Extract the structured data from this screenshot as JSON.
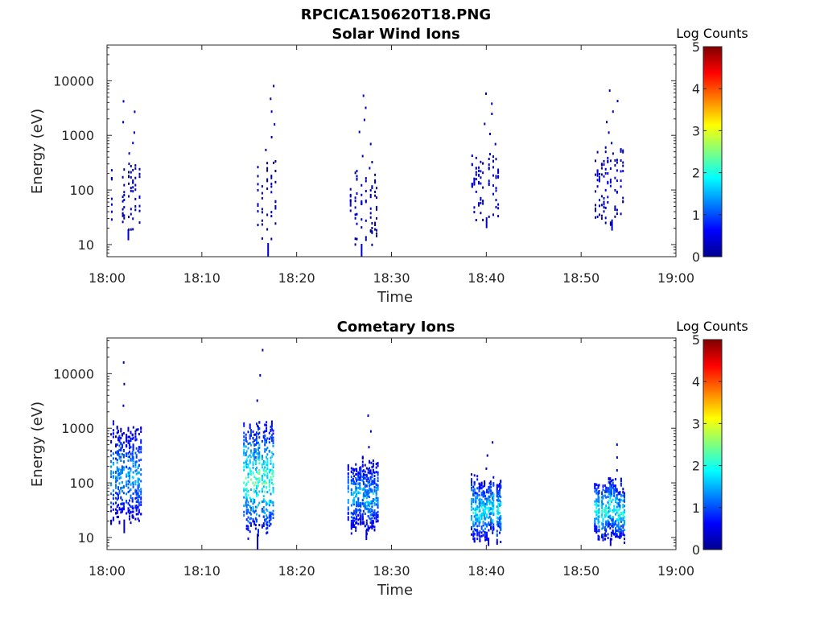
{
  "figure_title": "RPCICA150620T18.PNG",
  "chart_data": [
    {
      "type": "heatmap",
      "title": "Solar Wind Ions",
      "xlabel": "Time",
      "ylabel": "Energy (eV)",
      "xlim": [
        "18:00",
        "19:00"
      ],
      "x_ticks": [
        "18:00",
        "18:10",
        "18:20",
        "18:30",
        "18:40",
        "18:50",
        "19:00"
      ],
      "ylim": [
        6,
        45000
      ],
      "y_scale": "log",
      "y_ticks": [
        "10",
        "100",
        "1000",
        "10000"
      ],
      "grid": false,
      "colorbar": {
        "title": "Log Counts",
        "range": [
          0,
          5
        ],
        "ticks": [
          "0",
          "1",
          "2",
          "3",
          "4",
          "5"
        ],
        "colormap": "jet"
      },
      "bursts": [
        {
          "time": "18:02",
          "energy_range_eV": [
            12,
            4200
          ],
          "peak_log_counts": 0.5
        },
        {
          "time": "18:17",
          "energy_range_eV": [
            6,
            8000
          ],
          "peak_log_counts": 0.5
        },
        {
          "time": "18:27",
          "energy_range_eV": [
            6,
            5300
          ],
          "peak_log_counts": 0.5
        },
        {
          "time": "18:40",
          "energy_range_eV": [
            20,
            5800
          ],
          "peak_log_counts": 0.6
        },
        {
          "time": "18:53",
          "energy_range_eV": [
            18,
            6600
          ],
          "peak_log_counts": 0.7
        }
      ]
    },
    {
      "type": "heatmap",
      "title": "Cometary Ions",
      "xlabel": "Time",
      "ylabel": "Energy (eV)",
      "xlim": [
        "18:00",
        "19:00"
      ],
      "x_ticks": [
        "18:00",
        "18:10",
        "18:20",
        "18:30",
        "18:40",
        "18:50",
        "19:00"
      ],
      "ylim": [
        6,
        45000
      ],
      "y_scale": "log",
      "y_ticks": [
        "10",
        "100",
        "1000",
        "10000"
      ],
      "grid": false,
      "colorbar": {
        "title": "Log Counts",
        "range": [
          0,
          5
        ],
        "ticks": [
          "0",
          "1",
          "2",
          "3",
          "4",
          "5"
        ],
        "colormap": "jet"
      },
      "bursts": [
        {
          "time": "18:02",
          "energy_range_eV": [
            12,
            16000
          ],
          "peak_log_counts": 1.8
        },
        {
          "time": "18:16",
          "energy_range_eV": [
            6,
            27000
          ],
          "peak_log_counts": 2.7
        },
        {
          "time": "18:27",
          "energy_range_eV": [
            9,
            1700
          ],
          "peak_log_counts": 1.9
        },
        {
          "time": "18:40",
          "energy_range_eV": [
            7,
            550
          ],
          "peak_log_counts": 2.3
        },
        {
          "time": "18:53",
          "energy_range_eV": [
            7,
            500
          ],
          "peak_log_counts": 2.4
        }
      ]
    }
  ]
}
